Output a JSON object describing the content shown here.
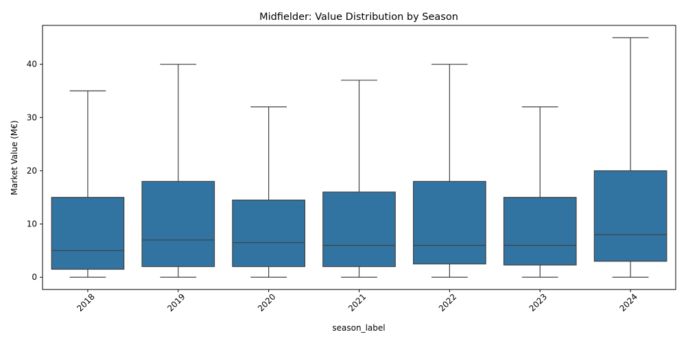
{
  "chart_data": {
    "type": "boxplot",
    "title": "Midfielder: Value Distribution by Season",
    "xlabel": "season_label",
    "ylabel": "Market Value (M€)",
    "ylim": [
      -2.3,
      47.3
    ],
    "yticks": [
      0,
      10,
      20,
      30,
      40
    ],
    "grid": false,
    "legend": "none",
    "color": "#3274a1",
    "categories": [
      "2018",
      "2019",
      "2020",
      "2021",
      "2022",
      "2023",
      "2024"
    ],
    "boxes": [
      {
        "season": "2018",
        "min": 0,
        "q1": 1.5,
        "median": 5,
        "q3": 15,
        "max": 35
      },
      {
        "season": "2019",
        "min": 0,
        "q1": 2,
        "median": 7,
        "q3": 18,
        "max": 40
      },
      {
        "season": "2020",
        "min": 0,
        "q1": 2,
        "median": 6.5,
        "q3": 14.5,
        "max": 32
      },
      {
        "season": "2021",
        "min": 0,
        "q1": 2,
        "median": 6,
        "q3": 16,
        "max": 37
      },
      {
        "season": "2022",
        "min": 0,
        "q1": 2.5,
        "median": 6,
        "q3": 18,
        "max": 40
      },
      {
        "season": "2023",
        "min": 0,
        "q1": 2.3,
        "median": 6,
        "q3": 15,
        "max": 32
      },
      {
        "season": "2024",
        "min": 0,
        "q1": 3,
        "median": 8,
        "q3": 20,
        "max": 45
      }
    ]
  }
}
